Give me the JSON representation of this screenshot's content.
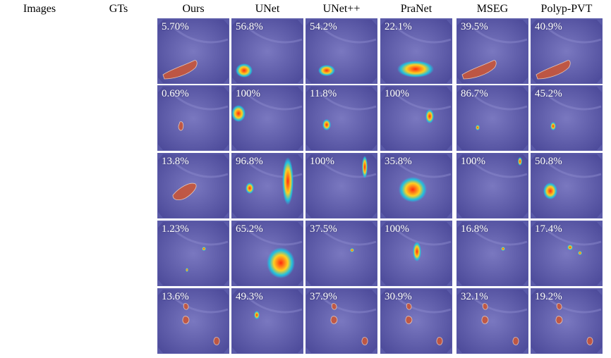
{
  "columns": [
    "Images",
    "GTs",
    "Ours",
    "UNet",
    "UNet++",
    "PraNet",
    "MSEG",
    "Polyp-PVT"
  ],
  "rows": [
    {
      "scores": [
        "5.70%",
        "56.8%",
        "54.2%",
        "22.1%",
        "39.5%",
        "40.9%"
      ]
    },
    {
      "scores": [
        "0.69%",
        "100%",
        "11.8%",
        "100%",
        "86.7%",
        "45.2%"
      ]
    },
    {
      "scores": [
        "13.8%",
        "96.8%",
        "100%",
        "35.8%",
        "100%",
        "50.8%"
      ]
    },
    {
      "scores": [
        "1.23%",
        "65.2%",
        "37.5%",
        "100%",
        "16.8%",
        "17.4%"
      ]
    },
    {
      "scores": [
        "13.6%",
        "49.3%",
        "37.9%",
        "30.9%",
        "32.1%",
        "19.2%"
      ]
    }
  ],
  "colors": {
    "overlay_bg": "#5a5aa8",
    "mask": "#c8563a",
    "mask_outline": "#f2d0b8",
    "heat_hot": "#ff2a10",
    "heat_warm": "#ffd020",
    "heat_cool": "#20c0e0"
  }
}
